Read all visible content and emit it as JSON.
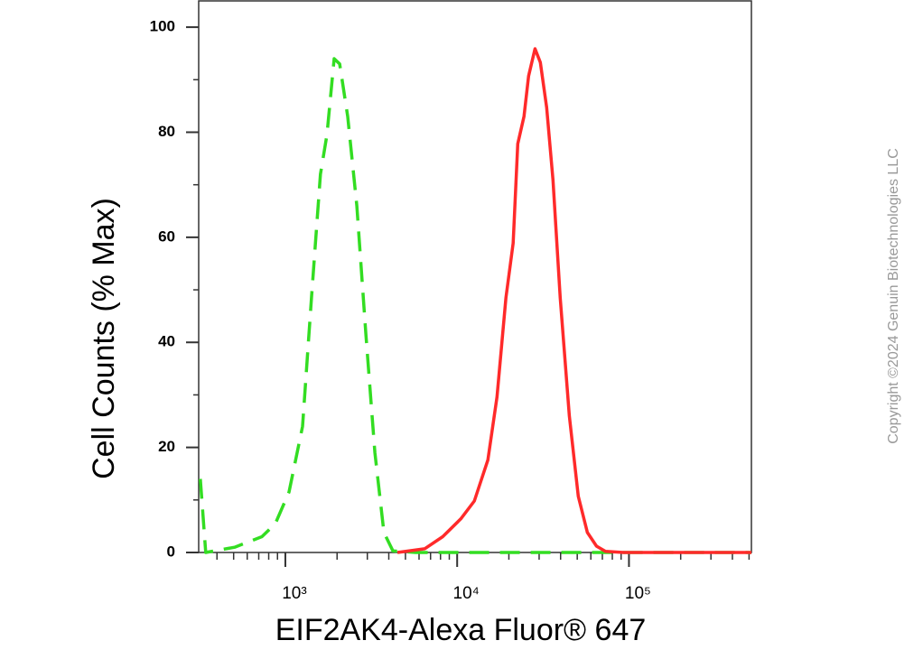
{
  "chart_data": {
    "type": "line",
    "x_label": "EIF2AK4-Alexa Fluor® 647",
    "y_label": "Cell Counts (% Max)",
    "copyright": "Copyright ©2024 Genuin Biotechnologies LLC",
    "x_scale": "log",
    "xlim": [
      313,
      516000
    ],
    "ylim": [
      0,
      105
    ],
    "xticks": [
      {
        "value": 1000,
        "label": "10³"
      },
      {
        "value": 10000,
        "label": "10⁴"
      },
      {
        "value": 100000,
        "label": "10⁵"
      }
    ],
    "x_minor_ticks": [
      400,
      500,
      600,
      700,
      800,
      900,
      2000,
      3000,
      4000,
      5000,
      6000,
      7000,
      8000,
      9000,
      20000,
      30000,
      40000,
      50000,
      60000,
      70000,
      80000,
      90000,
      200000,
      300000,
      400000,
      500000
    ],
    "yticks": [
      0,
      20,
      40,
      60,
      80,
      100
    ],
    "y_minor_ticks": [
      10,
      30,
      50,
      70,
      90
    ],
    "series": [
      {
        "color": "#33dd22",
        "dash": true,
        "x": [
          320,
          344,
          507,
          730,
          875,
          1050,
          1259,
          1420,
          1600,
          1746,
          1923,
          2070,
          2307,
          2605,
          2940,
          3320,
          3748,
          4230,
          5730,
          516000
        ],
        "values": [
          14,
          0,
          1,
          3,
          5.5,
          11.5,
          24,
          48.5,
          72,
          79.5,
          94,
          93,
          83,
          66,
          41.6,
          19,
          3.8,
          0.3,
          0,
          0
        ]
      },
      {
        "color": "#ff2a2a",
        "dash": false,
        "x": [
          4495,
          6470,
          8240,
          10500,
          12590,
          15100,
          17050,
          19230,
          21190,
          22530,
          24500,
          26060,
          28380,
          30480,
          33190,
          36140,
          39810,
          44980,
          50700,
          57280,
          64700,
          72950,
          92900,
          516000
        ],
        "values": [
          0,
          0.7,
          3,
          6.4,
          9.8,
          17.6,
          29.6,
          48.5,
          58.9,
          77.8,
          83,
          90.7,
          95.9,
          93.3,
          84.7,
          70.9,
          48.5,
          26,
          10.7,
          3.8,
          1.2,
          0.2,
          0,
          0
        ]
      }
    ]
  }
}
